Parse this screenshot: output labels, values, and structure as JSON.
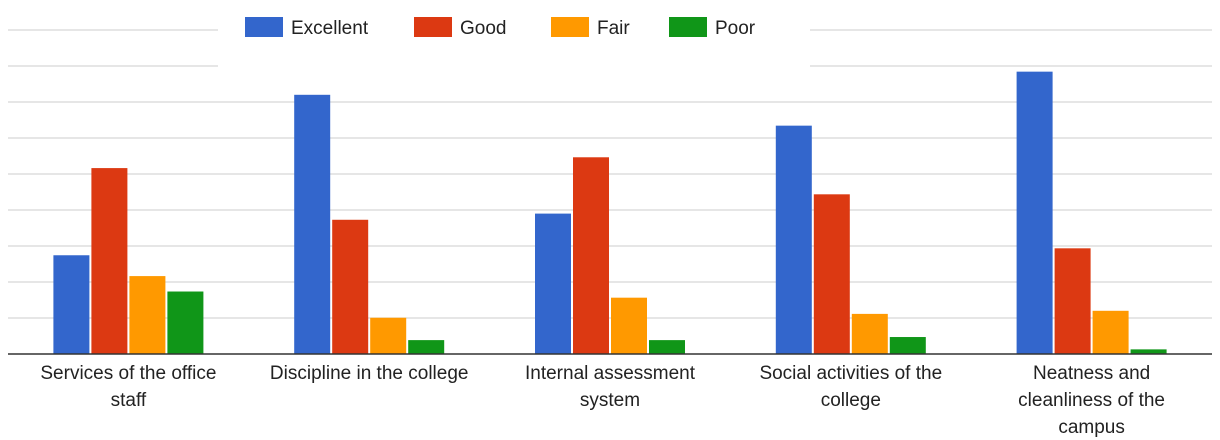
{
  "chart_data": {
    "type": "bar",
    "title": "",
    "xlabel": "",
    "ylabel": "",
    "ylim": [
      0,
      42
    ],
    "grid": true,
    "legend_position": "top-center",
    "categories": [
      [
        "Services of the office",
        "staff"
      ],
      [
        "Discipline in the college"
      ],
      [
        "Internal assessment",
        "system"
      ],
      [
        "Social activities of the",
        "college"
      ],
      [
        "Neatness and",
        "cleanliness of the",
        "campus"
      ]
    ],
    "series": [
      {
        "name": "Excellent",
        "color": "#3366cc",
        "values": [
          12.8,
          33.6,
          18.2,
          29.6,
          36.6
        ]
      },
      {
        "name": "Good",
        "color": "#dc3912",
        "values": [
          24.1,
          17.4,
          25.5,
          20.7,
          13.7
        ]
      },
      {
        "name": "Fair",
        "color": "#ff9900",
        "values": [
          10.1,
          4.7,
          7.3,
          5.2,
          5.6
        ]
      },
      {
        "name": "Poor",
        "color": "#109618",
        "values": [
          8.1,
          1.8,
          1.8,
          2.2,
          0.6
        ]
      }
    ]
  }
}
